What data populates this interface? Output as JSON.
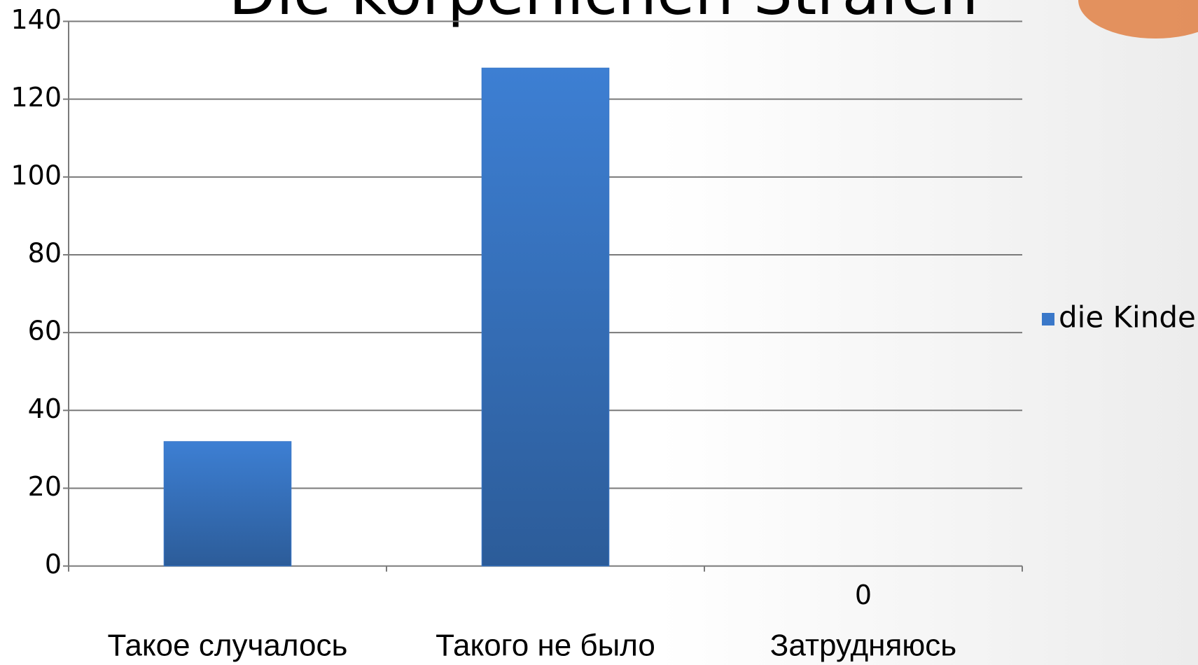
{
  "chart_data": {
    "type": "bar",
    "title": "Die körperlichen Strafen",
    "categories": [
      "Такое случалось",
      "Такого не было",
      "Затрудняюсь"
    ],
    "series": [
      {
        "name": "die Kinder",
        "color": "#3a78c9",
        "values": [
          32,
          128,
          0
        ]
      }
    ],
    "ylim": [
      0,
      140
    ],
    "yticks": [
      0,
      20,
      40,
      60,
      80,
      100,
      120,
      140
    ],
    "grid": true,
    "legend": "right"
  }
}
